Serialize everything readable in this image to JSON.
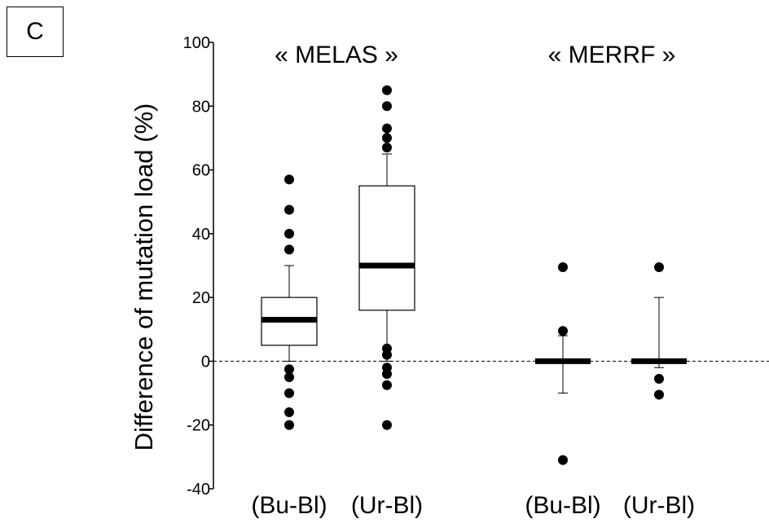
{
  "panel_label": "C",
  "chart_data": {
    "type": "box",
    "ylabel": "Difference of mutation load (%)",
    "ylim": [
      -40,
      100
    ],
    "yticks": [
      -40,
      -20,
      0,
      20,
      40,
      60,
      80,
      100
    ],
    "reference_line": 0,
    "groups": [
      {
        "title": "« MELAS »",
        "boxes": [
          {
            "label": "(Bu-Bl)",
            "q1": 5,
            "median": 13,
            "q3": 20,
            "whisker_low": 0,
            "whisker_high": 30,
            "outliers": [
              57,
              47.5,
              40,
              35,
              -2.5,
              -5,
              -10,
              -16,
              -20
            ]
          },
          {
            "label": "(Ur-Bl)",
            "q1": 16,
            "median": 30,
            "q3": 55,
            "whisker_low": 0,
            "whisker_high": 65,
            "outliers": [
              85,
              80,
              73,
              70,
              67,
              4,
              2,
              -2,
              -4,
              -7.5,
              -20
            ]
          }
        ]
      },
      {
        "title": "« MERRF »",
        "boxes": [
          {
            "label": "(Bu-Bl)",
            "q1": 0,
            "median": 0,
            "q3": 0,
            "whisker_low": -10,
            "whisker_high": 8,
            "outliers": [
              29.5,
              9.5,
              -31
            ]
          },
          {
            "label": "(Ur-Bl)",
            "q1": 0,
            "median": 0,
            "q3": 0,
            "whisker_low": -2,
            "whisker_high": 20,
            "outliers": [
              29.5,
              -5.5,
              -10.5
            ]
          }
        ]
      }
    ]
  }
}
